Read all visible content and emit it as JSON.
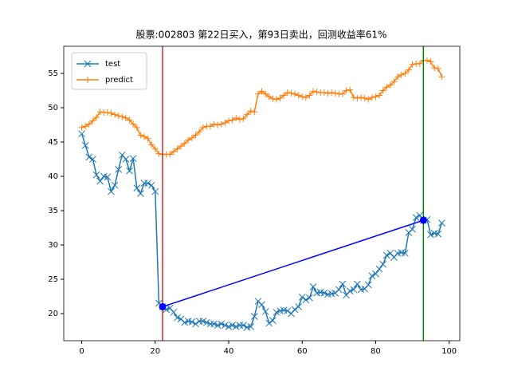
{
  "chart_data": {
    "type": "line",
    "title": "股票:002803 第22日买入，第93日卖出，回测收益率61%",
    "x": [
      0,
      1,
      2,
      3,
      4,
      5,
      6,
      7,
      8,
      9,
      10,
      11,
      12,
      13,
      14,
      15,
      16,
      17,
      18,
      19,
      20,
      21,
      22,
      23,
      24,
      25,
      26,
      27,
      28,
      29,
      30,
      31,
      32,
      33,
      34,
      35,
      36,
      37,
      38,
      39,
      40,
      41,
      42,
      43,
      44,
      45,
      46,
      47,
      48,
      49,
      50,
      51,
      52,
      53,
      54,
      55,
      56,
      57,
      58,
      59,
      60,
      61,
      62,
      63,
      64,
      65,
      66,
      67,
      68,
      69,
      70,
      71,
      72,
      73,
      74,
      75,
      76,
      77,
      78,
      79,
      80,
      81,
      82,
      83,
      84,
      85,
      86,
      87,
      88,
      89,
      90,
      91,
      92,
      93,
      94,
      95,
      96,
      97,
      98
    ],
    "series": [
      {
        "name": "test",
        "color": "#1f77b4",
        "marker": "x",
        "values": [
          46.2,
          44.5,
          42.8,
          42.5,
          40.2,
          39.3,
          40.0,
          39.9,
          37.8,
          38.7,
          41.0,
          43.1,
          42.5,
          40.8,
          42.6,
          38.3,
          37.5,
          39.0,
          39.0,
          38.7,
          37.8,
          21.5,
          21.0,
          20.6,
          20.8,
          20.2,
          19.4,
          19.2,
          18.7,
          18.9,
          18.8,
          18.5,
          18.9,
          18.9,
          18.7,
          18.5,
          18.5,
          18.3,
          18.5,
          18.3,
          18.1,
          18.3,
          18.1,
          18.3,
          18.3,
          18.0,
          18.1,
          19.6,
          21.8,
          21.3,
          20.3,
          18.6,
          19.0,
          20.2,
          20.4,
          20.5,
          20.4,
          20.0,
          20.6,
          21.0,
          22.4,
          22.0,
          22.3,
          23.9,
          23.0,
          23.1,
          23.0,
          22.8,
          22.9,
          23.0,
          23.5,
          24.3,
          22.7,
          23.3,
          23.5,
          24.3,
          23.5,
          23.6,
          24.2,
          25.5,
          25.8,
          26.5,
          27.2,
          28.5,
          28.8,
          28.2,
          28.8,
          28.9,
          28.8,
          31.8,
          32.3,
          34.0,
          34.3,
          33.6,
          33.7,
          31.5,
          31.7,
          31.6,
          33.2
        ]
      },
      {
        "name": "predict",
        "color": "#ff7f0e",
        "marker": "+",
        "values": [
          47.1,
          47.3,
          47.6,
          48.1,
          48.6,
          49.4,
          49.3,
          49.3,
          49.2,
          49.0,
          48.8,
          48.7,
          48.5,
          48.2,
          47.6,
          47.1,
          46.0,
          45.8,
          45.5,
          44.6,
          44.0,
          43.3,
          43.2,
          43.2,
          43.2,
          43.6,
          44.0,
          44.4,
          44.8,
          45.3,
          45.6,
          46.0,
          46.5,
          47.1,
          47.3,
          47.3,
          47.6,
          47.5,
          47.6,
          47.8,
          48.1,
          48.2,
          48.5,
          48.3,
          48.4,
          49.0,
          49.5,
          49.4,
          52.0,
          52.4,
          52.0,
          51.6,
          51.3,
          51.2,
          51.4,
          51.8,
          52.2,
          52.1,
          52.0,
          51.8,
          51.6,
          51.5,
          51.8,
          52.4,
          52.3,
          52.2,
          52.2,
          52.1,
          52.2,
          52.1,
          52.0,
          52.0,
          52.5,
          52.6,
          51.5,
          51.4,
          51.5,
          51.4,
          51.2,
          51.5,
          51.6,
          51.8,
          52.5,
          53.0,
          53.3,
          53.8,
          54.5,
          54.8,
          55.0,
          55.5,
          56.3,
          56.4,
          56.4,
          56.9,
          56.9,
          56.7,
          55.8,
          55.7,
          54.5
        ]
      }
    ],
    "vlines": [
      {
        "x": 22,
        "color": "#d62728"
      },
      {
        "x": 93,
        "color": "green"
      }
    ],
    "trade": {
      "x": [
        22,
        93
      ],
      "values": [
        21.0,
        33.6
      ],
      "color": "blue"
    },
    "xlim": [
      -4.9,
      102.9
    ],
    "ylim": [
      16.05,
      58.95
    ],
    "xticks": [
      0,
      20,
      40,
      60,
      80,
      100
    ],
    "yticks": [
      20,
      25,
      30,
      35,
      40,
      45,
      50,
      55
    ],
    "legend": "upper left"
  }
}
